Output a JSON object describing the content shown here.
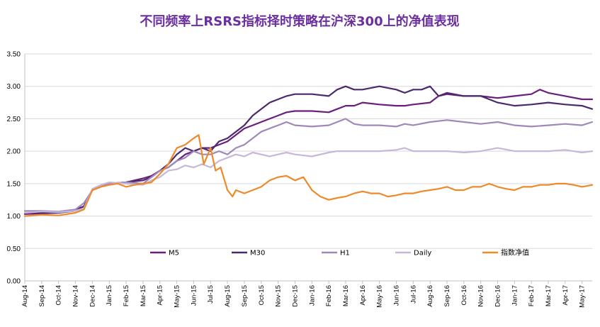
{
  "chart_data": {
    "type": "line",
    "title": "不同频率上RSRS指标择时策略在沪深300上的净值表现",
    "xlabel": "",
    "ylabel": "",
    "ylim": [
      0,
      3.5
    ],
    "y_ticks": [
      "0.00",
      "0.50",
      "1.00",
      "1.50",
      "2.00",
      "2.50",
      "3.00",
      "3.50"
    ],
    "x_ticks": [
      "Aug-14",
      "Sep-14",
      "Oct-14",
      "Nov-14",
      "Dec-14",
      "Jan-15",
      "Feb-15",
      "Mar-15",
      "Apr-15",
      "May-15",
      "Jun-15",
      "Jul-15",
      "Aug-15",
      "Sep-15",
      "Oct-15",
      "Nov-15",
      "Dec-15",
      "Jan-16",
      "Feb-16",
      "Mar-16",
      "Apr-16",
      "May-16",
      "Jun-16",
      "Jul-16",
      "Aug-16",
      "Sep-16",
      "Oct-16",
      "Nov-16",
      "Dec-16",
      "Jan-17",
      "Feb-17",
      "Mar-17",
      "Apr-17",
      "May-17"
    ],
    "x_range": [
      0,
      33.6
    ],
    "grid": "horizontal",
    "legend_position": "bottom",
    "series": [
      {
        "name": "M5",
        "color": "#6b1f7c",
        "x": [
          0,
          1,
          2,
          3,
          3.5,
          4,
          4.5,
          5,
          6,
          7,
          7.5,
          8,
          8.5,
          9,
          9.5,
          10,
          10.5,
          11,
          11.5,
          12,
          12.5,
          13,
          13.5,
          14,
          14.5,
          15,
          15.5,
          16,
          17,
          18,
          18.5,
          19,
          19.5,
          20,
          21,
          22,
          22.5,
          23,
          24,
          24.5,
          25,
          26,
          27,
          28,
          29,
          30,
          30.5,
          31,
          32,
          33,
          33.6
        ],
        "values": [
          1.03,
          1.04,
          1.05,
          1.1,
          1.15,
          1.4,
          1.45,
          1.5,
          1.52,
          1.58,
          1.62,
          1.7,
          1.75,
          1.85,
          1.95,
          2.0,
          2.05,
          2.05,
          2.1,
          2.15,
          2.25,
          2.35,
          2.4,
          2.45,
          2.5,
          2.55,
          2.6,
          2.62,
          2.62,
          2.6,
          2.65,
          2.7,
          2.7,
          2.75,
          2.72,
          2.7,
          2.7,
          2.72,
          2.75,
          2.85,
          2.88,
          2.85,
          2.85,
          2.82,
          2.85,
          2.88,
          2.95,
          2.9,
          2.85,
          2.8,
          2.8
        ]
      },
      {
        "name": "M30",
        "color": "#4a2a6a",
        "x": [
          0,
          1,
          2,
          3,
          3.5,
          4,
          4.5,
          5,
          6,
          7,
          7.5,
          8,
          8.5,
          9,
          9.5,
          10,
          10.5,
          11,
          11.5,
          12,
          12.5,
          13,
          13.5,
          14,
          14.5,
          15,
          15.5,
          16,
          17,
          18,
          18.5,
          19,
          19.5,
          20,
          21,
          22,
          22.5,
          23,
          23.5,
          24,
          24.5,
          25,
          26,
          27,
          28,
          29,
          30,
          31,
          32,
          33,
          33.6
        ],
        "values": [
          1.05,
          1.05,
          1.05,
          1.08,
          1.15,
          1.4,
          1.45,
          1.5,
          1.52,
          1.55,
          1.6,
          1.7,
          1.8,
          1.95,
          2.05,
          2.0,
          2.05,
          2.0,
          2.15,
          2.2,
          2.3,
          2.4,
          2.55,
          2.65,
          2.75,
          2.8,
          2.85,
          2.88,
          2.88,
          2.85,
          2.95,
          3.0,
          2.95,
          2.95,
          3.0,
          2.95,
          2.9,
          2.95,
          2.95,
          3.0,
          2.85,
          2.9,
          2.85,
          2.85,
          2.75,
          2.7,
          2.72,
          2.75,
          2.72,
          2.7,
          2.65
        ]
      },
      {
        "name": "H1",
        "color": "#9e89b8",
        "x": [
          0,
          1,
          2,
          3,
          3.5,
          4,
          4.5,
          5,
          6,
          7,
          7.5,
          8,
          8.5,
          9,
          9.5,
          10,
          10.5,
          11,
          11.5,
          12,
          12.5,
          13,
          13.5,
          14,
          14.5,
          15,
          15.5,
          16,
          17,
          18,
          18.5,
          19,
          19.5,
          20,
          21,
          22,
          22.5,
          23,
          24,
          25,
          26,
          27,
          28,
          29,
          30,
          31,
          32,
          33,
          33.6
        ],
        "values": [
          1.08,
          1.08,
          1.07,
          1.1,
          1.2,
          1.4,
          1.45,
          1.5,
          1.52,
          1.5,
          1.6,
          1.7,
          1.75,
          1.85,
          1.9,
          2.0,
          1.95,
          1.95,
          2.0,
          1.95,
          2.05,
          2.1,
          2.2,
          2.3,
          2.35,
          2.4,
          2.45,
          2.4,
          2.38,
          2.4,
          2.45,
          2.5,
          2.42,
          2.4,
          2.4,
          2.38,
          2.42,
          2.4,
          2.45,
          2.48,
          2.45,
          2.42,
          2.45,
          2.4,
          2.38,
          2.4,
          2.42,
          2.4,
          2.45
        ]
      },
      {
        "name": "Daily",
        "color": "#c6b8d8",
        "x": [
          0,
          1,
          2,
          3,
          3.5,
          4,
          4.5,
          5,
          6,
          7,
          7.5,
          8,
          8.5,
          9,
          9.5,
          10,
          10.5,
          11,
          11.5,
          12,
          12.5,
          13,
          13.5,
          14,
          14.5,
          15,
          15.5,
          16,
          17,
          18,
          18.5,
          19,
          19.5,
          20,
          21,
          22,
          22.5,
          23,
          24,
          25,
          26,
          27,
          28,
          29,
          30,
          31,
          32,
          33,
          33.6
        ],
        "values": [
          1.05,
          1.07,
          1.06,
          1.08,
          1.12,
          1.42,
          1.48,
          1.52,
          1.5,
          1.48,
          1.55,
          1.6,
          1.7,
          1.72,
          1.78,
          1.75,
          1.8,
          1.75,
          1.85,
          1.9,
          1.95,
          1.92,
          1.98,
          1.95,
          1.92,
          1.95,
          1.98,
          1.95,
          1.92,
          1.98,
          2.0,
          2.0,
          2.0,
          2.0,
          2.0,
          2.02,
          2.05,
          2.0,
          2.0,
          2.0,
          1.98,
          2.0,
          2.05,
          2.0,
          2.0,
          2.0,
          2.02,
          1.98,
          2.0
        ]
      },
      {
        "name": "指数净值",
        "color": "#ee8a2a",
        "x": [
          0,
          1,
          2,
          3,
          3.5,
          4,
          4.5,
          5,
          5.5,
          6,
          6.5,
          7,
          7.5,
          8,
          8.5,
          9,
          9.5,
          10,
          10.3,
          10.6,
          11,
          11.3,
          11.6,
          12,
          12.3,
          12.5,
          13,
          13.5,
          14,
          14.5,
          15,
          15.5,
          16,
          16.5,
          17,
          17.5,
          18,
          18.5,
          19,
          19.5,
          20,
          20.5,
          21,
          21.5,
          22,
          22.5,
          23,
          23.5,
          24,
          24.5,
          25,
          25.5,
          26,
          26.5,
          27,
          27.5,
          28,
          28.5,
          29,
          29.5,
          30,
          30.5,
          31,
          31.5,
          32,
          32.5,
          33,
          33.6
        ],
        "values": [
          1.0,
          1.02,
          1.01,
          1.05,
          1.1,
          1.4,
          1.45,
          1.48,
          1.5,
          1.45,
          1.48,
          1.5,
          1.52,
          1.65,
          1.8,
          2.05,
          2.1,
          2.2,
          2.25,
          1.8,
          2.05,
          1.7,
          1.75,
          1.4,
          1.3,
          1.4,
          1.35,
          1.4,
          1.45,
          1.55,
          1.6,
          1.62,
          1.55,
          1.6,
          1.4,
          1.3,
          1.25,
          1.28,
          1.3,
          1.35,
          1.38,
          1.35,
          1.35,
          1.3,
          1.32,
          1.35,
          1.35,
          1.38,
          1.4,
          1.42,
          1.45,
          1.4,
          1.4,
          1.45,
          1.45,
          1.5,
          1.45,
          1.42,
          1.4,
          1.45,
          1.45,
          1.48,
          1.48,
          1.5,
          1.5,
          1.48,
          1.45,
          1.48
        ]
      }
    ]
  }
}
